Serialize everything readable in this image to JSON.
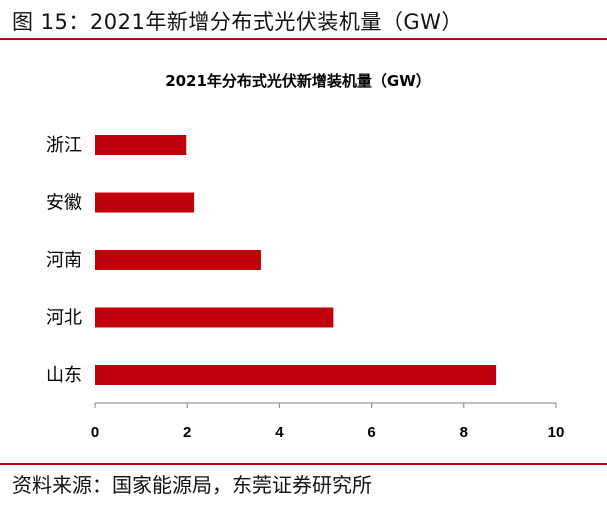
{
  "figure_title": "图 15：2021年新增分布式光伏装机量（GW）",
  "source": "资料来源：国家能源局，东莞证券研究所",
  "colors": {
    "bar": "#c0000b",
    "rule": "#c0000b",
    "axis": "#808080"
  },
  "chart_data": {
    "type": "bar",
    "orientation": "horizontal",
    "title": "2021年分布式光伏新增装机量（GW）",
    "categories": [
      "浙江",
      "安徽",
      "河南",
      "河北",
      "山东"
    ],
    "values": [
      1.98,
      2.15,
      3.6,
      5.17,
      8.7
    ],
    "xlim": [
      0,
      10
    ],
    "xticks": [
      0,
      2,
      4,
      6,
      8,
      10
    ],
    "xlabel": "",
    "ylabel": "",
    "grid": false
  }
}
